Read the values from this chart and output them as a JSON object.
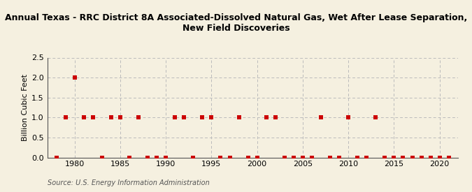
{
  "title": "Annual Texas - RRC District 8A Associated-Dissolved Natural Gas, Wet After Lease Separation,\nNew Field Discoveries",
  "ylabel": "Billion Cubic Feet",
  "source": "Source: U.S. Energy Information Administration",
  "xlim": [
    1977,
    2022
  ],
  "ylim": [
    0,
    2.5
  ],
  "yticks": [
    0.0,
    0.5,
    1.0,
    1.5,
    2.0,
    2.5
  ],
  "xticks": [
    1980,
    1985,
    1990,
    1995,
    2000,
    2005,
    2010,
    2015,
    2020
  ],
  "years": [
    1978,
    1979,
    1980,
    1981,
    1982,
    1983,
    1984,
    1985,
    1986,
    1987,
    1988,
    1989,
    1990,
    1991,
    1992,
    1993,
    1994,
    1995,
    1996,
    1997,
    1998,
    1999,
    2000,
    2001,
    2002,
    2003,
    2004,
    2005,
    2006,
    2007,
    2008,
    2009,
    2010,
    2011,
    2012,
    2013,
    2014,
    2015,
    2016,
    2017,
    2018,
    2019,
    2020,
    2021
  ],
  "values": [
    0.0,
    1.0,
    2.0,
    1.0,
    1.0,
    0.0,
    1.0,
    1.0,
    0.0,
    1.0,
    0.0,
    0.0,
    0.0,
    1.0,
    1.0,
    0.0,
    1.0,
    1.0,
    0.0,
    0.0,
    1.0,
    0.0,
    0.0,
    1.0,
    1.0,
    0.0,
    0.0,
    0.0,
    0.0,
    1.0,
    0.0,
    0.0,
    1.0,
    0.0,
    0.0,
    1.0,
    0.0,
    0.0,
    0.0,
    0.0,
    0.0,
    0.0,
    0.0,
    0.0
  ],
  "marker_color": "#cc0000",
  "marker_style": "s",
  "marker_size": 16,
  "background_color": "#f5f0e0",
  "grid_color": "#bbbbbb",
  "title_fontsize": 9,
  "axis_fontsize": 8,
  "tick_fontsize": 8,
  "source_fontsize": 7
}
